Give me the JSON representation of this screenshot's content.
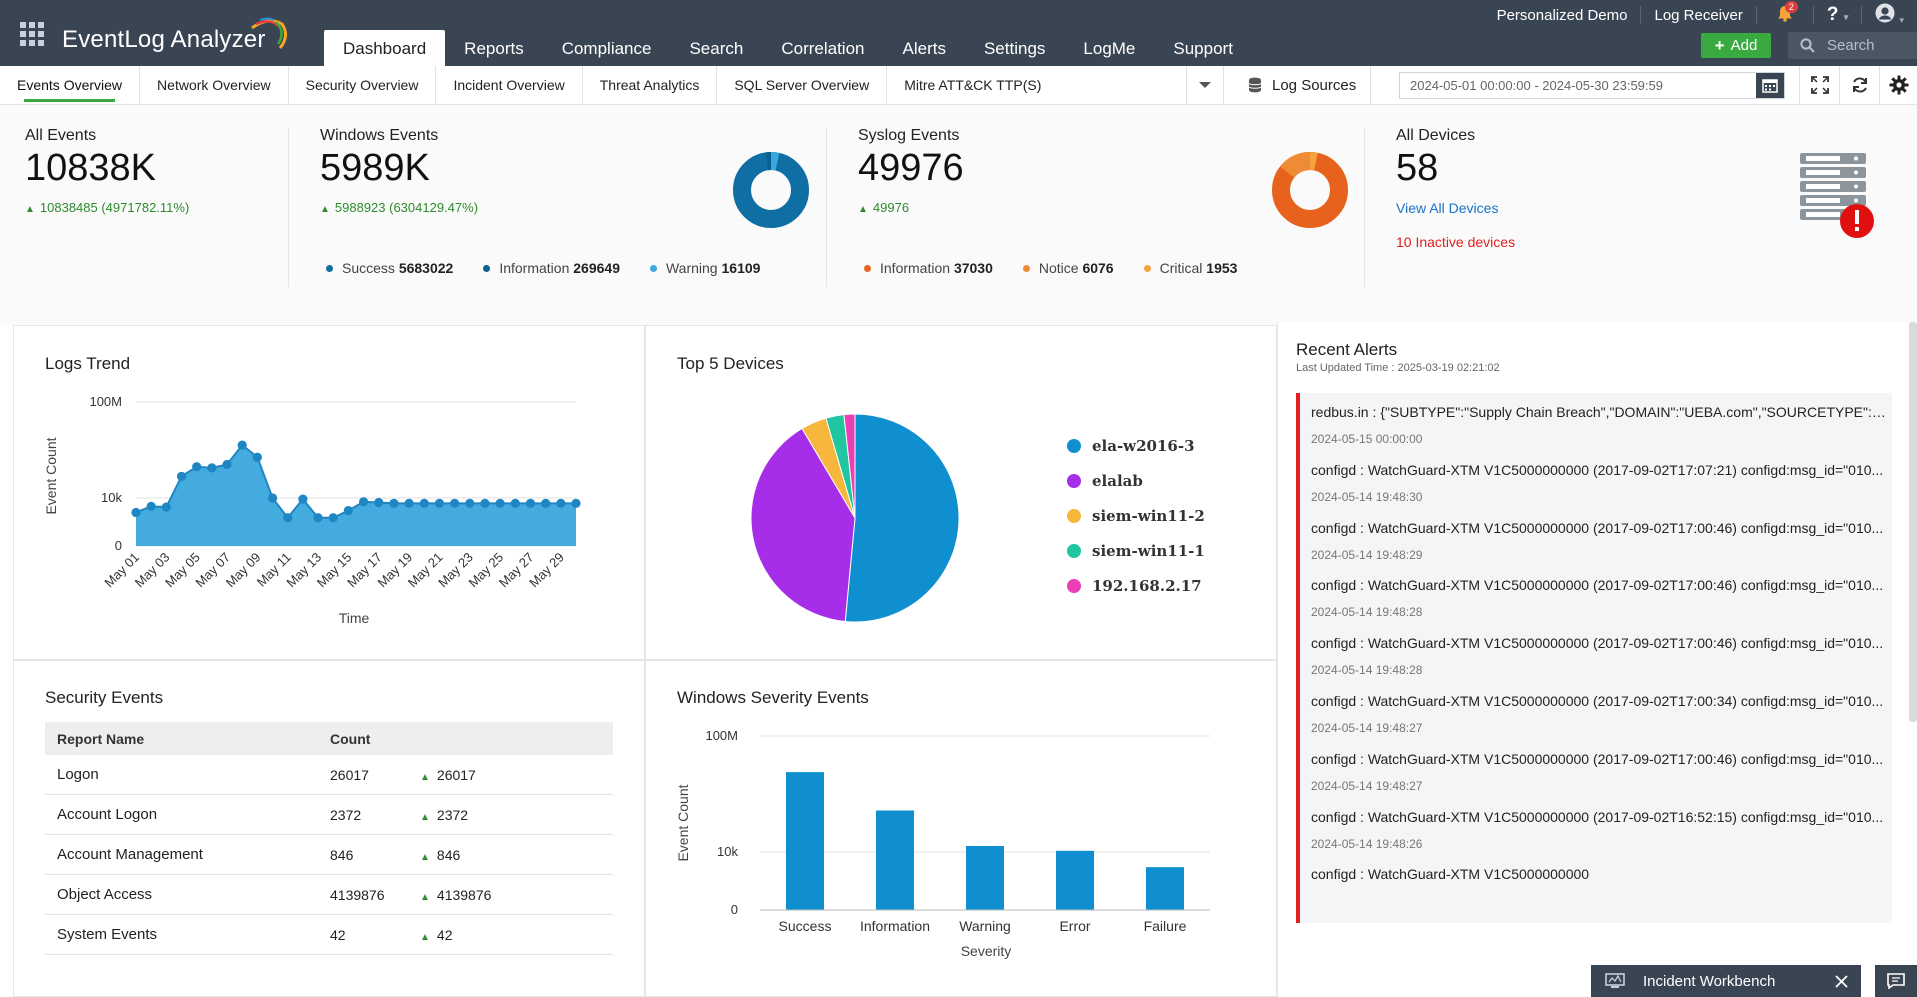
{
  "app": {
    "name": "EventLog Analyzer"
  },
  "nav": {
    "tabs": [
      "Dashboard",
      "Reports",
      "Compliance",
      "Search",
      "Correlation",
      "Alerts",
      "Settings",
      "LogMe",
      "Support"
    ],
    "active": "Dashboard"
  },
  "topbar": {
    "personalized_demo": "Personalized Demo",
    "log_receiver": "Log Receiver",
    "notification_count": "2",
    "help": "?",
    "add_label": "Add",
    "search_placeholder": "Search"
  },
  "subnav": {
    "tabs": [
      "Events Overview",
      "Network Overview",
      "Security Overview",
      "Incident Overview",
      "Threat Analytics",
      "SQL Server Overview",
      "Mitre ATT&CK TTP(S)"
    ],
    "active": "Events Overview",
    "log_sources": "Log Sources",
    "date_range": "2024-05-01 00:00:00 - 2024-05-30 23:59:59"
  },
  "summary": {
    "all_events": {
      "label": "All Events",
      "value": "10838K",
      "delta": "10838485 (4971782.11%)"
    },
    "windows_events": {
      "label": "Windows Events",
      "value": "5989K",
      "delta": "5988923 (6304129.47%)",
      "legend": [
        {
          "name": "Success",
          "value": "5683022",
          "color": "#0f6ea3"
        },
        {
          "name": "Information",
          "value": "269649",
          "color": "#0a5f95"
        },
        {
          "name": "Warning",
          "value": "16109",
          "color": "#3aa7de"
        }
      ]
    },
    "syslog_events": {
      "label": "Syslog Events",
      "value": "49976",
      "delta": "49976",
      "legend": [
        {
          "name": "Information",
          "value": "37030",
          "color": "#e6621d"
        },
        {
          "name": "Notice",
          "value": "6076",
          "color": "#f08b35"
        },
        {
          "name": "Critical",
          "value": "1953",
          "color": "#f4a13e"
        }
      ]
    },
    "all_devices": {
      "label": "All Devices",
      "value": "58",
      "view_all": "View All Devices",
      "inactive": "10 Inactive devices"
    }
  },
  "panels": {
    "logs_trend": {
      "title": "Logs Trend"
    },
    "top5": {
      "title": "Top 5 Devices"
    },
    "security": {
      "title": "Security Events",
      "headers": [
        "Report Name",
        "Count"
      ],
      "rows": [
        {
          "name": "Logon",
          "count": "26017",
          "delta": "26017"
        },
        {
          "name": "Account Logon",
          "count": "2372",
          "delta": "2372"
        },
        {
          "name": "Account Management",
          "count": "846",
          "delta": "846"
        },
        {
          "name": "Object Access",
          "count": "4139876",
          "delta": "4139876"
        },
        {
          "name": "System Events",
          "count": "42",
          "delta": "42"
        }
      ]
    },
    "win_severity": {
      "title": "Windows Severity Events"
    }
  },
  "chart_data": [
    {
      "type": "area",
      "title": "Logs Trend",
      "xlabel": "Time",
      "ylabel": "Event Count",
      "yscale": "log",
      "yticks": [
        "100M",
        "10k",
        "0"
      ],
      "x": [
        "May 01",
        "May 02",
        "May 03",
        "May 04",
        "May 05",
        "May 06",
        "May 07",
        "May 08",
        "May 09",
        "May 10",
        "May 11",
        "May 12",
        "May 13",
        "May 14",
        "May 15",
        "May 16",
        "May 17",
        "May 18",
        "May 19",
        "May 20",
        "May 21",
        "May 22",
        "May 23",
        "May 24",
        "May 25",
        "May 26",
        "May 27",
        "May 28",
        "May 29",
        "May 30"
      ],
      "xtick_labels": [
        "May 01",
        "May 03",
        "May 05",
        "May 07",
        "May 09",
        "May 11",
        "May 13",
        "May 15",
        "May 17",
        "May 19",
        "May 21",
        "May 23",
        "May 25",
        "May 27",
        "May 29"
      ],
      "values": [
        2500,
        4500,
        4200,
        80000,
        200000,
        180000,
        250000,
        1600000,
        500000,
        10000,
        1500,
        9000,
        1500,
        1500,
        3000,
        7000,
        6500,
        6000,
        6000,
        6000,
        6000,
        6000,
        6000,
        6000,
        6000,
        6000,
        6000,
        6000,
        6000,
        6000
      ],
      "color": "#3aa7dc"
    },
    {
      "type": "pie",
      "title": "Top 5 Devices",
      "labels": [
        "ela-w2016-3",
        "elalab",
        "siem-win11-2",
        "siem-win11-1",
        "192.168.2.17"
      ],
      "values": [
        51.5,
        40,
        4,
        2.8,
        1.7
      ],
      "colors": [
        "#0f8fcf",
        "#a62ee8",
        "#f6b73c",
        "#1fc6a0",
        "#ea3fb5"
      ]
    },
    {
      "type": "bar",
      "title": "Windows Severity Events",
      "xlabel": "Severity",
      "ylabel": "Event Count",
      "yscale": "log",
      "yticks": [
        "100M",
        "10k",
        "0"
      ],
      "categories": [
        "Success",
        "Information",
        "Warning",
        "Error",
        "Failure"
      ],
      "values": [
        5683022,
        269649,
        16109,
        11000,
        3000
      ],
      "color": "#0f8fcf"
    }
  ]
}
